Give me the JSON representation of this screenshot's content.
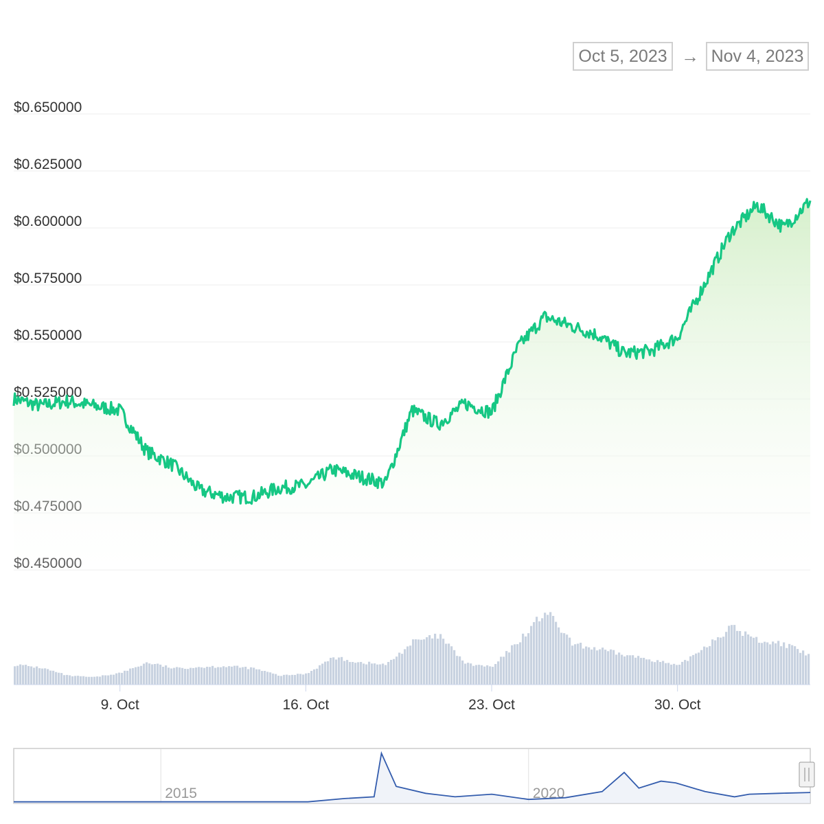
{
  "date_range": {
    "from": "Oct 5, 2023",
    "arrow": "→",
    "to": "Nov 4, 2023"
  },
  "colors": {
    "price_line": "#16c784",
    "area_fill_top": "#d4efc9",
    "volume_bar": "#c8d2e0",
    "grid": "#eeeeee",
    "navigator_line": "#335cad"
  },
  "chart_data": [
    {
      "type": "line",
      "x_range": [
        "2023-10-05",
        "2023-11-04"
      ],
      "y_ticks": [
        "$0.650000",
        "$0.625000",
        "$0.600000",
        "$0.575000",
        "$0.550000",
        "$0.525000",
        "$0.500000",
        "$0.475000",
        "$0.450000"
      ],
      "x_ticks": [
        "9. Oct",
        "16. Oct",
        "23. Oct",
        "30. Oct"
      ],
      "ylim": [
        0.45,
        0.65
      ],
      "grid": true,
      "series": [
        {
          "x": [
            "2023-10-05",
            "2023-10-06",
            "2023-10-07",
            "2023-10-08",
            "2023-10-09",
            "2023-10-10",
            "2023-10-11",
            "2023-10-12",
            "2023-10-13",
            "2023-10-14",
            "2023-10-15",
            "2023-10-16",
            "2023-10-17",
            "2023-10-18",
            "2023-10-19",
            "2023-10-20",
            "2023-10-21",
            "2023-10-22",
            "2023-10-23",
            "2023-10-24",
            "2023-10-25",
            "2023-10-26",
            "2023-10-27",
            "2023-10-28",
            "2023-10-29",
            "2023-10-30",
            "2023-10-31",
            "2023-11-01",
            "2023-11-02",
            "2023-11-03",
            "2023-11-04"
          ],
          "values": [
            0.525,
            0.522,
            0.524,
            0.522,
            0.52,
            0.502,
            0.496,
            0.485,
            0.482,
            0.482,
            0.486,
            0.487,
            0.494,
            0.491,
            0.488,
            0.52,
            0.514,
            0.523,
            0.519,
            0.548,
            0.561,
            0.557,
            0.553,
            0.545,
            0.546,
            0.552,
            0.575,
            0.598,
            0.61,
            0.6,
            0.612
          ]
        }
      ]
    },
    {
      "type": "bar",
      "name_hint": "volume",
      "x": [
        "2023-10-05",
        "2023-10-06",
        "2023-10-07",
        "2023-10-08",
        "2023-10-09",
        "2023-10-10",
        "2023-10-11",
        "2023-10-12",
        "2023-10-13",
        "2023-10-14",
        "2023-10-15",
        "2023-10-16",
        "2023-10-17",
        "2023-10-18",
        "2023-10-19",
        "2023-10-20",
        "2023-10-21",
        "2023-10-22",
        "2023-10-23",
        "2023-10-24",
        "2023-10-25",
        "2023-10-26",
        "2023-10-27",
        "2023-10-28",
        "2023-10-29",
        "2023-10-30",
        "2023-10-31",
        "2023-11-01",
        "2023-11-02",
        "2023-11-03",
        "2023-11-04"
      ],
      "values": [
        0.27,
        0.23,
        0.12,
        0.1,
        0.16,
        0.3,
        0.22,
        0.24,
        0.25,
        0.22,
        0.12,
        0.15,
        0.37,
        0.3,
        0.27,
        0.58,
        0.66,
        0.28,
        0.24,
        0.6,
        1.0,
        0.55,
        0.48,
        0.4,
        0.34,
        0.25,
        0.52,
        0.78,
        0.6,
        0.55,
        0.38
      ]
    },
    {
      "type": "line",
      "name_hint": "navigator",
      "x_ticks": [
        "2015",
        "2020"
      ],
      "x": [
        2013.0,
        2014.0,
        2015.0,
        2016.0,
        2017.0,
        2017.5,
        2017.9,
        2018.0,
        2018.2,
        2018.6,
        2019.0,
        2019.5,
        2020.0,
        2020.5,
        2021.0,
        2021.3,
        2021.5,
        2021.8,
        2022.0,
        2022.4,
        2022.8,
        2023.0,
        2023.4,
        2023.83
      ],
      "values": [
        0.01,
        0.01,
        0.01,
        0.01,
        0.01,
        0.2,
        0.3,
        2.8,
        0.9,
        0.5,
        0.3,
        0.45,
        0.15,
        0.25,
        0.6,
        1.7,
        0.8,
        1.2,
        1.1,
        0.6,
        0.3,
        0.45,
        0.5,
        0.55
      ]
    }
  ]
}
